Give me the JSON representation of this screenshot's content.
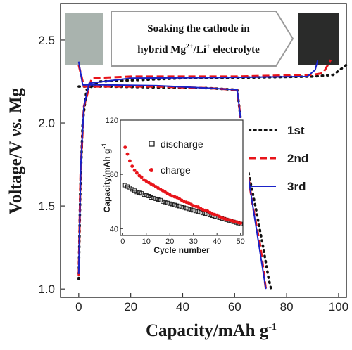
{
  "banner": {
    "line1": "Soaking the cathode in",
    "line2_base": "hybrid Mg",
    "line2_sup1": "2+",
    "line2_mid": "/Li",
    "line2_sup2": "+",
    "line2_end": " electrolyte",
    "left_swatch_color": "#a9b3ae",
    "right_swatch_color": "#2a2b2a"
  },
  "colors": {
    "first": "#111111",
    "second": "#e8141a",
    "third": "#1a22c8",
    "discharge_marker": "#111111",
    "charge_marker": "#e8141a"
  },
  "chart_data": [
    {
      "type": "line",
      "ylabel_parts": [
        "Voltage/V ",
        "vs.",
        " Mg"
      ],
      "xlabel_base": "Capacity/mAh g",
      "xlabel_sup": "-1",
      "xlim": [
        -7,
        103
      ],
      "ylim": [
        0.95,
        2.72
      ],
      "xticks": [
        0,
        20,
        40,
        60,
        80,
        100
      ],
      "yticks": [
        1.0,
        1.5,
        2.0,
        2.5
      ],
      "ytick_labels": [
        "1.0",
        "1.5",
        "2.0",
        "2.5"
      ],
      "legend_position": "right",
      "series": [
        {
          "name": "1st",
          "style": "dotted",
          "discharge": [
            [
              0,
              2.22
            ],
            [
              10,
              2.22
            ],
            [
              30,
              2.215
            ],
            [
              50,
              2.21
            ],
            [
              61,
              2.2
            ],
            [
              64,
              1.8
            ],
            [
              68,
              1.5
            ],
            [
              71,
              1.25
            ],
            [
              73,
              1.07
            ],
            [
              74,
              1.0
            ]
          ],
          "charge": [
            [
              0,
              1.06
            ],
            [
              0.6,
              1.6
            ],
            [
              1.5,
              2.0
            ],
            [
              3,
              2.2
            ],
            [
              8,
              2.25
            ],
            [
              40,
              2.27
            ],
            [
              70,
              2.275
            ],
            [
              90,
              2.28
            ],
            [
              98,
              2.29
            ],
            [
              103,
              2.35
            ]
          ]
        },
        {
          "name": "2nd",
          "style": "dashed",
          "discharge": [
            [
              0,
              2.35
            ],
            [
              2,
              2.22
            ],
            [
              30,
              2.22
            ],
            [
              50,
              2.21
            ],
            [
              61,
              2.2
            ],
            [
              64,
              1.8
            ],
            [
              67,
              1.5
            ],
            [
              70,
              1.25
            ],
            [
              72,
              1.0
            ]
          ],
          "charge": [
            [
              0,
              1.08
            ],
            [
              0.7,
              1.7
            ],
            [
              2,
              2.1
            ],
            [
              5,
              2.27
            ],
            [
              20,
              2.28
            ],
            [
              60,
              2.28
            ],
            [
              90,
              2.29
            ],
            [
              94,
              2.3
            ],
            [
              97,
              2.38
            ]
          ]
        },
        {
          "name": "3rd",
          "style": "solid",
          "discharge": [
            [
              0,
              2.37
            ],
            [
              1.5,
              2.23
            ],
            [
              10,
              2.23
            ],
            [
              30,
              2.225
            ],
            [
              50,
              2.21
            ],
            [
              61,
              2.2
            ],
            [
              64,
              1.8
            ],
            [
              67,
              1.5
            ],
            [
              70,
              1.2
            ],
            [
              72,
              1.0
            ]
          ],
          "charge": [
            [
              0,
              1.09
            ],
            [
              0.8,
              1.75
            ],
            [
              2,
              2.1
            ],
            [
              4,
              2.24
            ],
            [
              20,
              2.27
            ],
            [
              60,
              2.275
            ],
            [
              88,
              2.28
            ],
            [
              91,
              2.32
            ],
            [
              92,
              2.38
            ]
          ]
        }
      ]
    },
    {
      "type": "scatter",
      "xlabel": "Cycle number",
      "ylabel_base": "Capacity/mAh g",
      "ylabel_sup": "-1",
      "xlim": [
        -1,
        51
      ],
      "ylim": [
        35,
        120
      ],
      "xticks": [
        0,
        10,
        20,
        30,
        40,
        50
      ],
      "yticks": [
        40,
        80,
        120
      ],
      "series": [
        {
          "name": "discharge",
          "marker": "open-square",
          "x": [
            1,
            2,
            3,
            4,
            5,
            6,
            7,
            8,
            9,
            10,
            11,
            12,
            13,
            14,
            15,
            16,
            17,
            18,
            19,
            20,
            21,
            22,
            23,
            24,
            25,
            26,
            27,
            28,
            29,
            30,
            31,
            32,
            33,
            34,
            35,
            36,
            37,
            38,
            39,
            40,
            41,
            42,
            43,
            44,
            45,
            46,
            47,
            48,
            49,
            50
          ],
          "y": [
            72,
            71,
            70,
            69,
            68,
            67,
            66.5,
            66,
            65,
            64.5,
            64,
            63,
            62.5,
            62,
            61.5,
            61,
            60,
            59.5,
            59,
            58.5,
            58,
            57.5,
            57,
            56.5,
            56,
            55.5,
            55,
            54.5,
            54,
            53.5,
            53,
            52.5,
            52,
            51.5,
            51,
            50.5,
            50,
            49.5,
            49,
            48.5,
            48,
            47.5,
            47,
            46.5,
            46,
            45.5,
            45,
            44.5,
            44,
            43.5
          ]
        },
        {
          "name": "charge",
          "marker": "filled-circle",
          "x": [
            1,
            2,
            3,
            4,
            5,
            6,
            7,
            8,
            9,
            10,
            11,
            12,
            13,
            14,
            15,
            16,
            17,
            18,
            19,
            20,
            21,
            22,
            23,
            24,
            25,
            26,
            27,
            28,
            29,
            30,
            31,
            32,
            33,
            34,
            35,
            36,
            37,
            38,
            39,
            40,
            41,
            42,
            43,
            44,
            45,
            46,
            47,
            48,
            49,
            50
          ],
          "y": [
            100,
            95,
            90,
            86,
            83,
            81,
            79,
            78,
            76,
            75,
            74,
            73,
            72,
            71,
            70,
            69,
            68,
            67,
            66,
            65,
            64,
            63.5,
            63,
            62,
            61,
            60,
            59.5,
            59,
            58,
            57,
            56.5,
            56,
            55,
            54,
            53.5,
            53,
            52,
            51,
            50.5,
            50,
            49,
            48,
            47.5,
            47,
            46.5,
            46,
            45.5,
            45,
            44.5,
            44
          ]
        }
      ]
    }
  ]
}
